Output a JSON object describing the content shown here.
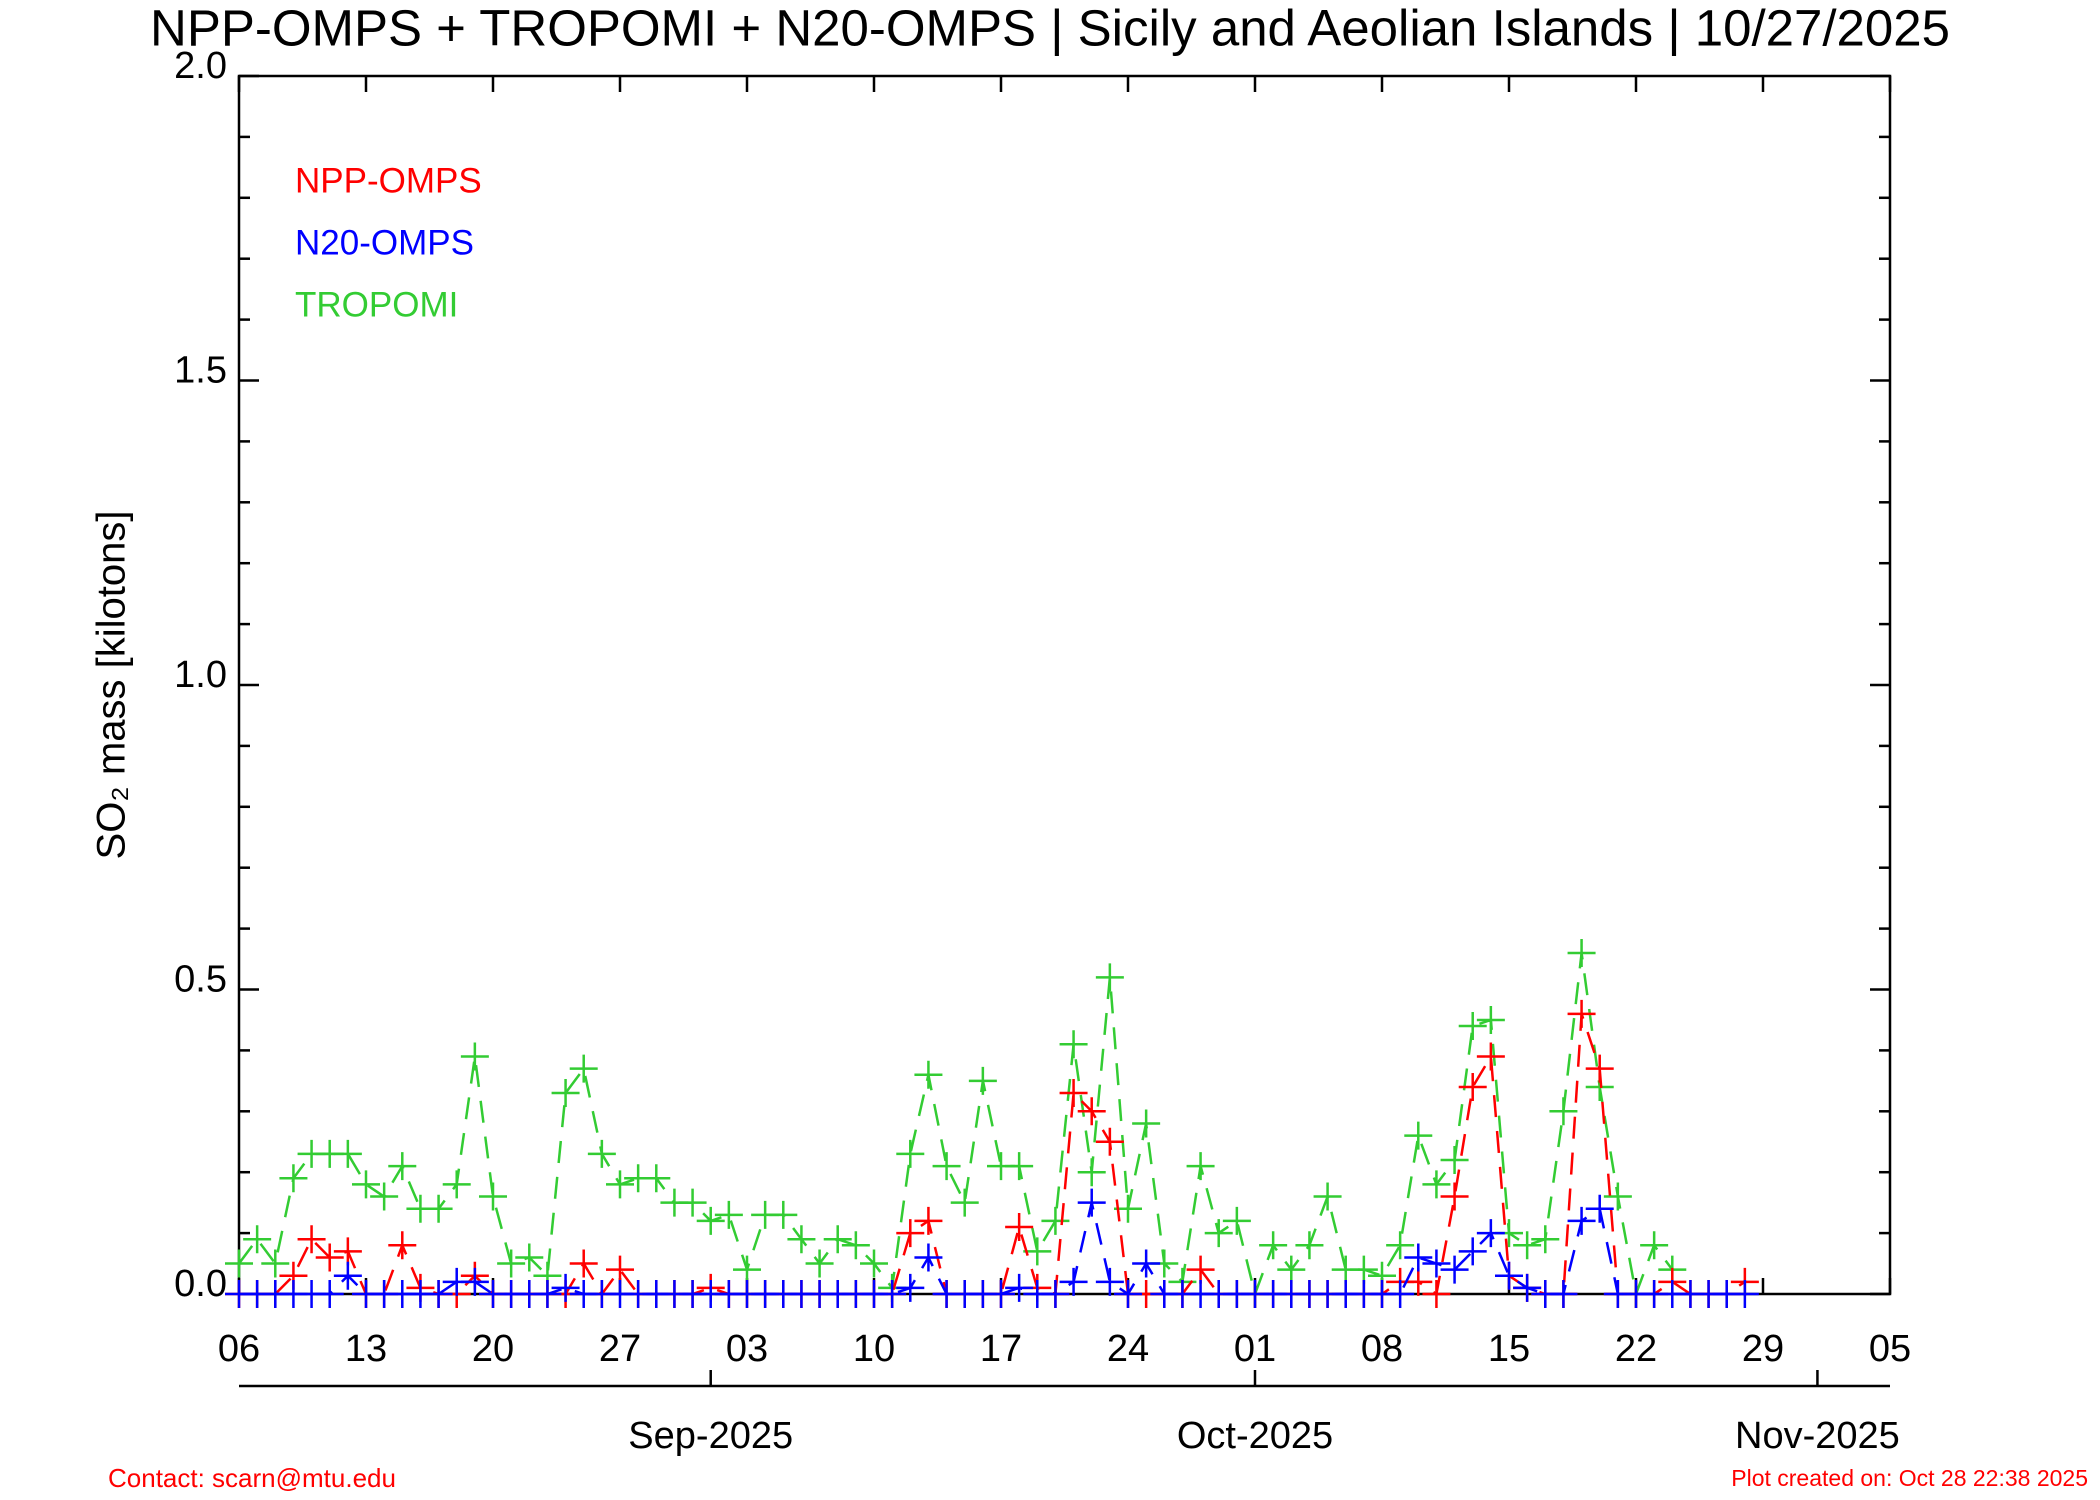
{
  "chart_data": {
    "type": "line",
    "title": "NPP-OMPS + TROPOMI + N20-OMPS | Sicily and Aeolian Islands | 10/27/2025",
    "ylabel": "SO₂ mass [kilotons]",
    "footer_left": "Contact: scarn@mtu.edu",
    "footer_right": "Plot created on: Oct 28 22:38 2025",
    "x": [
      "2025-08-06",
      "2025-08-07",
      "2025-08-08",
      "2025-08-09",
      "2025-08-10",
      "2025-08-11",
      "2025-08-12",
      "2025-08-13",
      "2025-08-14",
      "2025-08-15",
      "2025-08-16",
      "2025-08-17",
      "2025-08-18",
      "2025-08-19",
      "2025-08-20",
      "2025-08-21",
      "2025-08-22",
      "2025-08-23",
      "2025-08-24",
      "2025-08-25",
      "2025-08-26",
      "2025-08-27",
      "2025-08-28",
      "2025-08-29",
      "2025-08-30",
      "2025-08-31",
      "2025-09-01",
      "2025-09-02",
      "2025-09-03",
      "2025-09-04",
      "2025-09-05",
      "2025-09-06",
      "2025-09-07",
      "2025-09-08",
      "2025-09-09",
      "2025-09-10",
      "2025-09-11",
      "2025-09-12",
      "2025-09-13",
      "2025-09-14",
      "2025-09-15",
      "2025-09-16",
      "2025-09-17",
      "2025-09-18",
      "2025-09-19",
      "2025-09-20",
      "2025-09-21",
      "2025-09-22",
      "2025-09-23",
      "2025-09-24",
      "2025-09-25",
      "2025-09-26",
      "2025-09-27",
      "2025-09-28",
      "2025-09-29",
      "2025-09-30",
      "2025-10-01",
      "2025-10-02",
      "2025-10-03",
      "2025-10-04",
      "2025-10-05",
      "2025-10-06",
      "2025-10-07",
      "2025-10-08",
      "2025-10-09",
      "2025-10-10",
      "2025-10-11",
      "2025-10-12",
      "2025-10-13",
      "2025-10-14",
      "2025-10-15",
      "2025-10-16",
      "2025-10-17",
      "2025-10-18",
      "2025-10-19",
      "2025-10-20",
      "2025-10-21",
      "2025-10-22",
      "2025-10-23",
      "2025-10-24",
      "2025-10-25",
      "2025-10-26",
      "2025-10-27",
      "2025-10-28"
    ],
    "series": [
      {
        "name": "NPP-OMPS",
        "color": "#ff0000",
        "values": [
          0,
          0,
          0,
          0.03,
          0.09,
          0.06,
          0.07,
          0,
          0,
          0.08,
          0.01,
          0,
          0,
          0.03,
          0,
          0,
          0,
          0,
          0,
          0.05,
          0,
          0.04,
          0,
          0,
          0,
          0,
          0.01,
          0,
          0,
          0,
          0,
          0,
          0,
          0,
          0,
          0,
          0,
          0.1,
          0.12,
          0,
          0,
          0,
          0,
          0.11,
          0.01,
          0,
          0.33,
          0.3,
          0.25,
          0,
          0,
          0,
          0,
          0.04,
          0,
          0,
          0,
          0,
          0,
          0,
          0,
          0,
          0,
          0,
          0.02,
          0.02,
          0,
          0.16,
          0.34,
          0.39,
          0.03,
          0.01,
          0,
          0,
          0.46,
          0.37,
          0,
          0,
          0,
          0.02,
          0,
          0,
          0,
          0.02
        ]
      },
      {
        "name": "N20-OMPS",
        "color": "#0000ff",
        "values": [
          0,
          0,
          0,
          0,
          0,
          0,
          0.03,
          0,
          0,
          0,
          0,
          0,
          0.02,
          0.02,
          0,
          0,
          0,
          0,
          0.01,
          0,
          0,
          0,
          0,
          0,
          0,
          0,
          0,
          0,
          0,
          0,
          0,
          0,
          0,
          0,
          0,
          0,
          0,
          0.01,
          0.06,
          0,
          0,
          0,
          0,
          0.01,
          0,
          0,
          0.02,
          0.15,
          0.02,
          0,
          0.05,
          0,
          0,
          0,
          0,
          0,
          0,
          0,
          0,
          0,
          0,
          0,
          0,
          0,
          0,
          0.06,
          0.05,
          0.04,
          0.07,
          0.1,
          0.03,
          0.01,
          0,
          0,
          0.12,
          0.14,
          0,
          0,
          0,
          0,
          0,
          0,
          0,
          0
        ]
      },
      {
        "name": "TROPOMI",
        "color": "#33cc33",
        "values": [
          0.05,
          0.09,
          0.05,
          0.19,
          0.23,
          0.23,
          0.23,
          0.18,
          0.16,
          0.21,
          0.14,
          0.14,
          0.18,
          0.39,
          0.16,
          0.05,
          0.06,
          0.03,
          0.33,
          0.37,
          0.23,
          0.18,
          0.19,
          0.19,
          0.15,
          0.15,
          0.12,
          0.13,
          0.04,
          0.13,
          0.13,
          0.09,
          0.05,
          0.09,
          0.08,
          0.05,
          0.01,
          0.23,
          0.36,
          0.21,
          0.15,
          0.35,
          0.21,
          0.21,
          0.07,
          0.12,
          0.41,
          0.2,
          0.52,
          0.14,
          0.28,
          0.05,
          0.02,
          0.21,
          0.1,
          0.12,
          0,
          0.08,
          0.04,
          0.08,
          0.16,
          0.04,
          0.04,
          0.03,
          0.08,
          0.26,
          0.18,
          0.22,
          0.44,
          0.45,
          0.1,
          0.08,
          0.09,
          0.3,
          0.56,
          0.34,
          0.16,
          0,
          0.08,
          0.04,
          null,
          null,
          null,
          null
        ]
      }
    ],
    "xlim": [
      "2025-08-06",
      "2025-11-05"
    ],
    "xticks": [
      {
        "value": "2025-08-06",
        "label": "06"
      },
      {
        "value": "2025-08-13",
        "label": "13"
      },
      {
        "value": "2025-08-20",
        "label": "20"
      },
      {
        "value": "2025-08-27",
        "label": "27"
      },
      {
        "value": "2025-09-03",
        "label": "03"
      },
      {
        "value": "2025-09-10",
        "label": "10"
      },
      {
        "value": "2025-09-17",
        "label": "17"
      },
      {
        "value": "2025-09-24",
        "label": "24"
      },
      {
        "value": "2025-10-01",
        "label": "01"
      },
      {
        "value": "2025-10-08",
        "label": "08"
      },
      {
        "value": "2025-10-15",
        "label": "15"
      },
      {
        "value": "2025-10-22",
        "label": "22"
      },
      {
        "value": "2025-10-29",
        "label": "29"
      },
      {
        "value": "2025-11-05",
        "label": "05"
      }
    ],
    "month_ticks": [
      {
        "value": "2025-09-01",
        "label": "Sep-2025"
      },
      {
        "value": "2025-10-01",
        "label": "Oct-2025"
      },
      {
        "value": "2025-11-01",
        "label": "Nov-2025"
      }
    ],
    "ylim": [
      0,
      2
    ],
    "yticks": [
      {
        "value": 0,
        "label": "0.0"
      },
      {
        "value": 0.5,
        "label": "0.5"
      },
      {
        "value": 1,
        "label": "1.0"
      },
      {
        "value": 1.5,
        "label": "1.5"
      },
      {
        "value": 2,
        "label": "2.0"
      }
    ],
    "y_minor_ticks": [
      0.1,
      0.2,
      0.3,
      0.4,
      0.6,
      0.7,
      0.8,
      0.9,
      1.1,
      1.2,
      1.3,
      1.4,
      1.6,
      1.7,
      1.8,
      1.9
    ],
    "legend": "upper left",
    "line_style": "dashed",
    "marker": "+"
  }
}
